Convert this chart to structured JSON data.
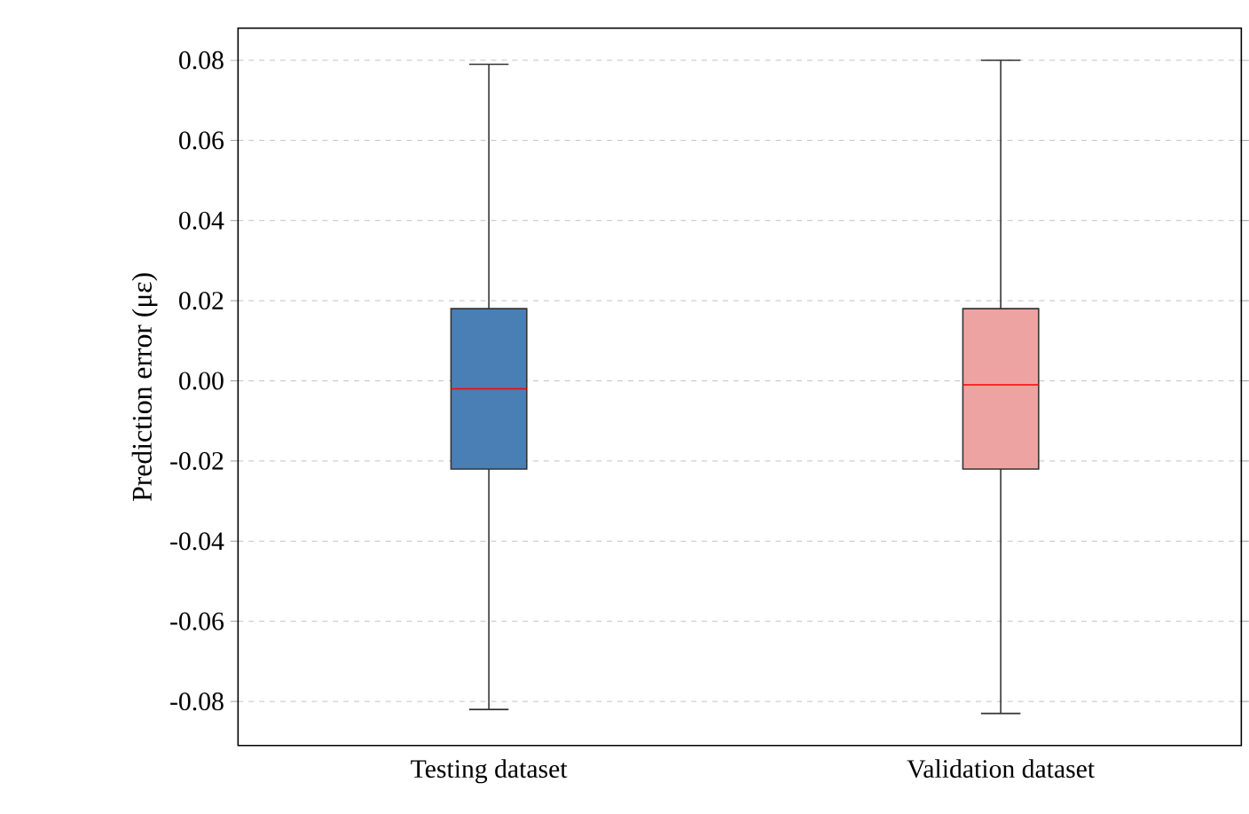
{
  "chart_data": {
    "type": "box",
    "ylabel": "Prediction error (με)",
    "categories": [
      "Testing dataset",
      "Validation dataset"
    ],
    "boxes": [
      {
        "low": -0.082,
        "q1": -0.022,
        "median": -0.002,
        "q3": 0.018,
        "high": 0.079
      },
      {
        "low": -0.083,
        "q1": -0.022,
        "median": -0.001,
        "q3": 0.018,
        "high": 0.08
      }
    ],
    "colors": [
      "#4a7fb5",
      "#eea3a3"
    ],
    "ylim": [
      -0.091,
      0.088
    ],
    "yticks": [
      {
        "value": -0.08,
        "label": "-0.08"
      },
      {
        "value": -0.06,
        "label": "-0.06"
      },
      {
        "value": -0.04,
        "label": "-0.04"
      },
      {
        "value": -0.02,
        "label": "-0.02"
      },
      {
        "value": 0.0,
        "label": "0.00"
      },
      {
        "value": 0.02,
        "label": "0.02"
      },
      {
        "value": 0.04,
        "label": "0.04"
      },
      {
        "value": 0.06,
        "label": "0.06"
      },
      {
        "value": 0.08,
        "label": "0.08"
      }
    ],
    "grid": "y"
  }
}
